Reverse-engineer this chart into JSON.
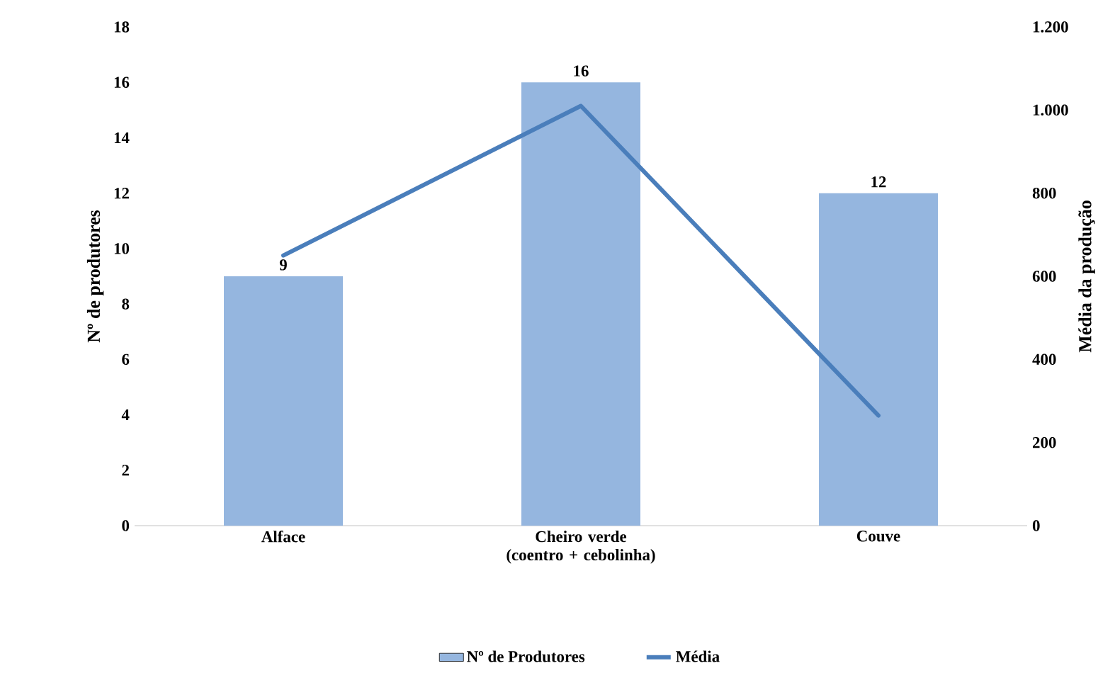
{
  "chart_data": {
    "type": "bar",
    "categories": [
      "Alface",
      "Cheiro verde (coentro + cebolinha)",
      "Couve"
    ],
    "ylabel": "Nº de produtores",
    "y2label": "Média da produção",
    "ylim": [
      0,
      18
    ],
    "yticks": [
      0,
      2,
      4,
      6,
      8,
      10,
      12,
      14,
      16,
      18
    ],
    "y2lim": [
      0,
      1200
    ],
    "y2ticks": [
      0,
      200,
      400,
      600,
      800,
      {
        "value": 1000,
        "label": "1.000"
      },
      {
        "value": 1200,
        "label": "1.200"
      }
    ],
    "series": [
      {
        "name": "Nº de Produtores",
        "color": "#95b6df",
        "values": [
          9,
          16,
          12
        ],
        "value_labels": [
          "9",
          "16",
          "12"
        ]
      },
      {
        "name": "Média",
        "type": "line",
        "axis": "y2",
        "color": "#4a7ebb",
        "values": [
          650,
          1010,
          265
        ]
      }
    ],
    "legend": "bottom"
  }
}
